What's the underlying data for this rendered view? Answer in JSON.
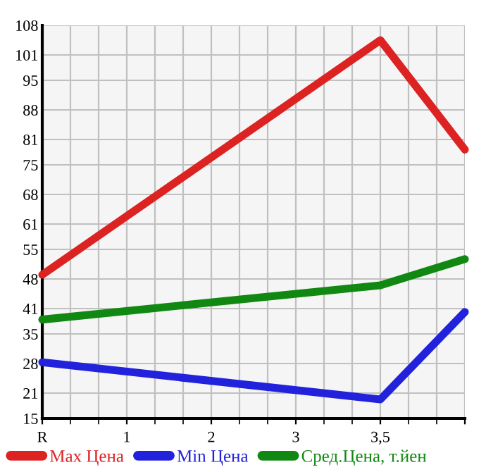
{
  "chart_data": {
    "type": "line",
    "categories": [
      "R",
      "1",
      "2",
      "3",
      "3,5",
      null
    ],
    "series": [
      {
        "name": "Max Цена",
        "color": "#dd2222",
        "values": [
          49,
          null,
          null,
          null,
          104.5,
          78.6
        ]
      },
      {
        "name": "Min Цена",
        "color": "#2222dd",
        "values": [
          28.3,
          null,
          null,
          null,
          19.5,
          40.2
        ]
      },
      {
        "name": "Сред.Цена, т.йен",
        "color": "#118811",
        "values": [
          38.4,
          null,
          null,
          null,
          46.5,
          52.7
        ]
      }
    ],
    "ylim": [
      15,
      108
    ],
    "yticks": [
      15,
      21,
      28,
      35,
      41,
      48,
      55,
      61,
      68,
      75,
      81,
      88,
      95,
      101,
      108
    ],
    "grid": true,
    "legend": "bottom",
    "marker": "none",
    "line_style": "solid"
  }
}
